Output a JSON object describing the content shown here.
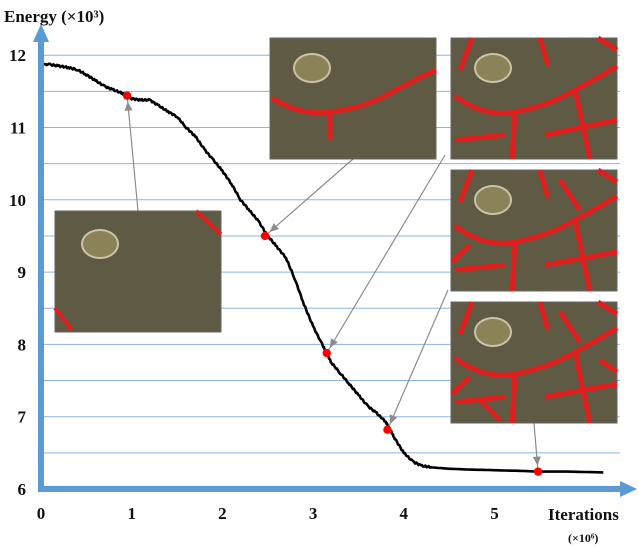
{
  "chart_data": {
    "type": "line",
    "ylabel": "Energy (×10³)",
    "xlabel": "Iterations",
    "xlabel_unit": "(×10⁶)",
    "x_ticks": [
      0,
      1,
      2,
      3,
      4,
      5
    ],
    "y_ticks": [
      6,
      7,
      8,
      9,
      10,
      11,
      12
    ],
    "xlim": [
      0,
      6.5
    ],
    "ylim": [
      6,
      12.35
    ],
    "grid": "horizontal",
    "series": [
      {
        "x": [
          0,
          0.1,
          0.2,
          0.3,
          0.4,
          0.5,
          0.6,
          0.7,
          0.8,
          0.9,
          0.95,
          1.0,
          1.1,
          1.2,
          1.3,
          1.4,
          1.5,
          1.6,
          1.7,
          1.8,
          1.9,
          2.0,
          2.1,
          2.2,
          2.3,
          2.4,
          2.5,
          2.6,
          2.7,
          2.8,
          2.9,
          3.0,
          3.1,
          3.15,
          3.2,
          3.3,
          3.4,
          3.5,
          3.6,
          3.7,
          3.8,
          3.85,
          3.9,
          4.0,
          4.1,
          4.2,
          4.3,
          4.5,
          4.7,
          5.0,
          5.3,
          5.5,
          5.8,
          6.2
        ],
        "y": [
          11.88,
          11.87,
          11.85,
          11.83,
          11.8,
          11.73,
          11.65,
          11.57,
          11.52,
          11.47,
          11.44,
          11.4,
          11.38,
          11.38,
          11.3,
          11.22,
          11.15,
          11.0,
          10.88,
          10.7,
          10.55,
          10.4,
          10.22,
          10.0,
          9.85,
          9.7,
          9.5,
          9.35,
          9.2,
          8.9,
          8.55,
          8.25,
          8.0,
          7.88,
          7.75,
          7.6,
          7.45,
          7.3,
          7.15,
          7.05,
          6.93,
          6.82,
          6.7,
          6.5,
          6.38,
          6.32,
          6.3,
          6.28,
          6.27,
          6.26,
          6.25,
          6.24,
          6.24,
          6.23
        ]
      }
    ],
    "highlighted_points": [
      {
        "x": 0.95,
        "y": 11.44
      },
      {
        "x": 2.47,
        "y": 9.5
      },
      {
        "x": 3.15,
        "y": 7.88
      },
      {
        "x": 3.82,
        "y": 6.82
      },
      {
        "x": 5.48,
        "y": 6.24
      }
    ],
    "colors": {
      "axis": "#5b9bd5",
      "grid": "#8eb4e3",
      "curve": "#000000",
      "marker": "#ff0000",
      "connector": "#8c8c8c",
      "road": "#e01e1e"
    }
  }
}
